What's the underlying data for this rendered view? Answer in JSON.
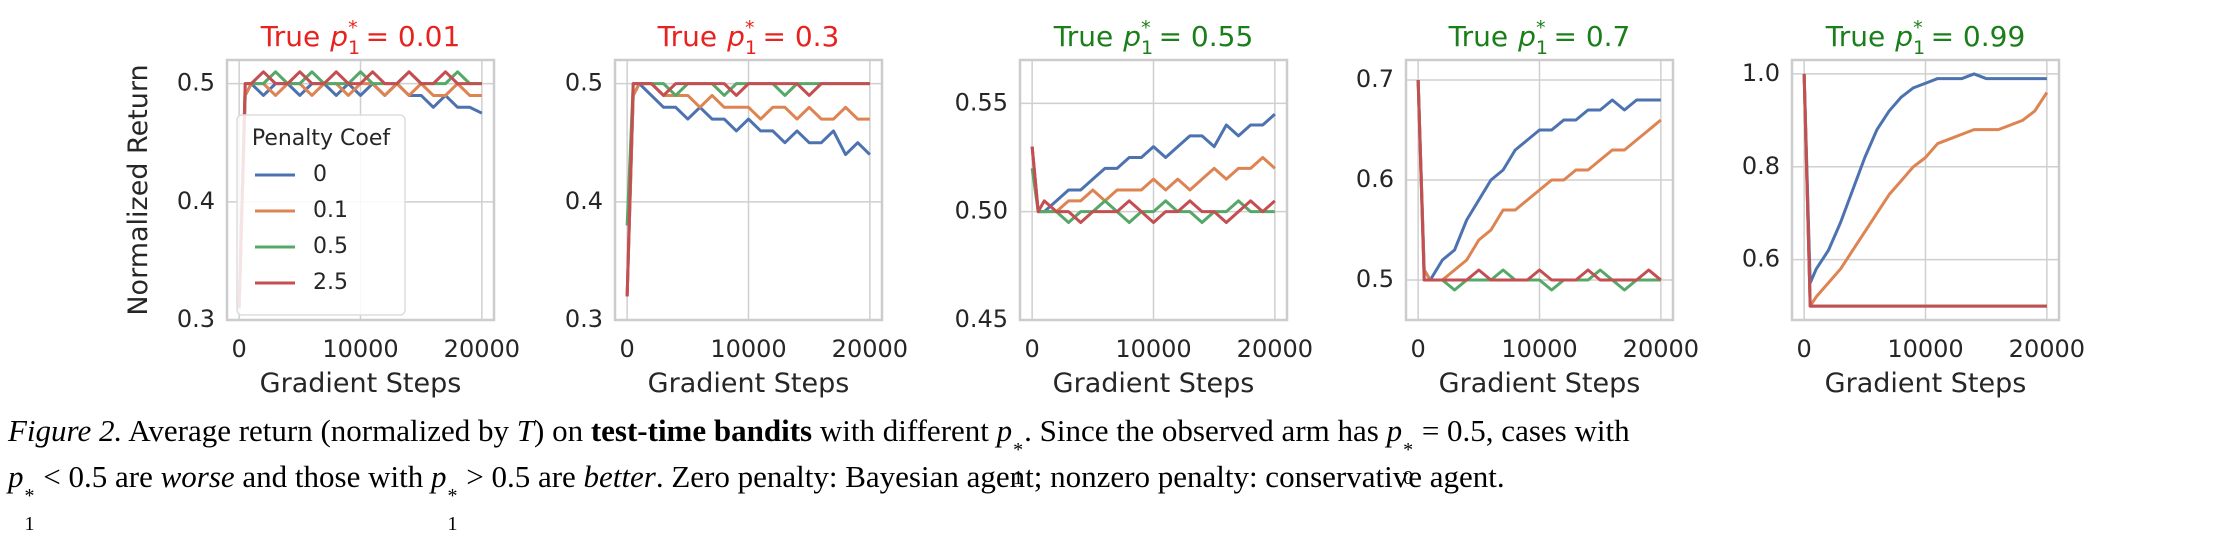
{
  "chart_data": [
    {
      "type": "line",
      "title": {
        "prefix": "True",
        "symbol": "p",
        "sub": "1",
        "sup": "*",
        "rest": "= 0.01"
      },
      "title_color": "#e8231f",
      "ylabel": "Normalized Return",
      "xlabel": "Gradient Steps",
      "grid": true,
      "legend": "center left",
      "legend_title": "Penalty Coef",
      "xlim": [
        -1000,
        21000
      ],
      "xticks": [
        0,
        10000,
        20000
      ],
      "ylim": [
        0.3,
        0.52
      ],
      "yticks": [
        0.3,
        0.4,
        0.5
      ],
      "x": [
        0,
        500,
        1000,
        2000,
        3000,
        4000,
        5000,
        6000,
        7000,
        8000,
        9000,
        10000,
        11000,
        12000,
        13000,
        14000,
        15000,
        16000,
        17000,
        18000,
        19000,
        20000
      ],
      "series": [
        {
          "name": "0",
          "color": "#4c72b0",
          "values": [
            0.31,
            0.49,
            0.5,
            0.49,
            0.5,
            0.5,
            0.49,
            0.5,
            0.5,
            0.49,
            0.5,
            0.49,
            0.5,
            0.49,
            0.5,
            0.49,
            0.49,
            0.48,
            0.49,
            0.48,
            0.48,
            0.475
          ]
        },
        {
          "name": "0.1",
          "color": "#dd8452",
          "values": [
            0.31,
            0.49,
            0.5,
            0.5,
            0.49,
            0.5,
            0.5,
            0.49,
            0.5,
            0.5,
            0.49,
            0.5,
            0.5,
            0.49,
            0.5,
            0.49,
            0.5,
            0.49,
            0.49,
            0.5,
            0.49,
            0.49
          ]
        },
        {
          "name": "0.5",
          "color": "#55a868",
          "values": [
            0.31,
            0.5,
            0.5,
            0.5,
            0.51,
            0.5,
            0.5,
            0.51,
            0.5,
            0.5,
            0.5,
            0.51,
            0.5,
            0.5,
            0.5,
            0.51,
            0.5,
            0.5,
            0.5,
            0.51,
            0.5,
            0.5
          ]
        },
        {
          "name": "2.5",
          "color": "#c44e52",
          "values": [
            0.31,
            0.5,
            0.5,
            0.51,
            0.5,
            0.5,
            0.51,
            0.5,
            0.5,
            0.51,
            0.5,
            0.5,
            0.51,
            0.5,
            0.5,
            0.51,
            0.5,
            0.5,
            0.51,
            0.5,
            0.5,
            0.5
          ]
        }
      ]
    },
    {
      "type": "line",
      "title": {
        "prefix": "True",
        "symbol": "p",
        "sub": "1",
        "sup": "*",
        "rest": "= 0.3"
      },
      "title_color": "#e8231f",
      "xlabel": "Gradient Steps",
      "grid": true,
      "xlim": [
        -1000,
        21000
      ],
      "xticks": [
        0,
        10000,
        20000
      ],
      "ylim": [
        0.3,
        0.52
      ],
      "yticks": [
        0.3,
        0.4,
        0.5
      ],
      "x": [
        0,
        500,
        1000,
        2000,
        3000,
        4000,
        5000,
        6000,
        7000,
        8000,
        9000,
        10000,
        11000,
        12000,
        13000,
        14000,
        15000,
        16000,
        17000,
        18000,
        19000,
        20000
      ],
      "series": [
        {
          "color": "#4c72b0",
          "values": [
            0.32,
            0.49,
            0.5,
            0.49,
            0.48,
            0.48,
            0.47,
            0.48,
            0.47,
            0.47,
            0.46,
            0.47,
            0.46,
            0.46,
            0.45,
            0.46,
            0.45,
            0.45,
            0.46,
            0.44,
            0.45,
            0.44
          ]
        },
        {
          "color": "#dd8452",
          "values": [
            0.32,
            0.49,
            0.5,
            0.5,
            0.49,
            0.49,
            0.49,
            0.48,
            0.49,
            0.48,
            0.48,
            0.48,
            0.47,
            0.48,
            0.48,
            0.47,
            0.48,
            0.47,
            0.47,
            0.48,
            0.47,
            0.47
          ]
        },
        {
          "color": "#55a868",
          "values": [
            0.38,
            0.5,
            0.5,
            0.5,
            0.5,
            0.49,
            0.5,
            0.5,
            0.5,
            0.49,
            0.5,
            0.5,
            0.5,
            0.5,
            0.49,
            0.5,
            0.5,
            0.5,
            0.5,
            0.5,
            0.5,
            0.5
          ]
        },
        {
          "color": "#c44e52",
          "values": [
            0.32,
            0.5,
            0.5,
            0.5,
            0.49,
            0.5,
            0.5,
            0.5,
            0.5,
            0.5,
            0.49,
            0.5,
            0.5,
            0.5,
            0.5,
            0.5,
            0.49,
            0.5,
            0.5,
            0.5,
            0.5,
            0.5
          ]
        }
      ]
    },
    {
      "type": "line",
      "title": {
        "prefix": "True",
        "symbol": "p",
        "sub": "1",
        "sup": "*",
        "rest": "= 0.55"
      },
      "title_color": "#1a7f1a",
      "xlabel": "Gradient Steps",
      "grid": true,
      "xlim": [
        -1000,
        21000
      ],
      "xticks": [
        0,
        10000,
        20000
      ],
      "ylim": [
        0.45,
        0.57
      ],
      "yticks": [
        0.45,
        {
          "value": 0.5,
          "label": "0.50"
        },
        0.55
      ],
      "x": [
        0,
        500,
        1000,
        2000,
        3000,
        4000,
        5000,
        6000,
        7000,
        8000,
        9000,
        10000,
        11000,
        12000,
        13000,
        14000,
        15000,
        16000,
        17000,
        18000,
        19000,
        20000
      ],
      "series": [
        {
          "color": "#4c72b0",
          "values": [
            0.53,
            0.5,
            0.5,
            0.505,
            0.51,
            0.51,
            0.515,
            0.52,
            0.52,
            0.525,
            0.525,
            0.53,
            0.525,
            0.53,
            0.535,
            0.535,
            0.53,
            0.54,
            0.535,
            0.54,
            0.54,
            0.545
          ]
        },
        {
          "color": "#dd8452",
          "values": [
            0.53,
            0.5,
            0.5,
            0.5,
            0.505,
            0.505,
            0.51,
            0.505,
            0.51,
            0.51,
            0.51,
            0.515,
            0.51,
            0.515,
            0.51,
            0.515,
            0.52,
            0.515,
            0.52,
            0.52,
            0.525,
            0.52
          ]
        },
        {
          "color": "#55a868",
          "values": [
            0.52,
            0.5,
            0.5,
            0.5,
            0.495,
            0.5,
            0.5,
            0.505,
            0.5,
            0.495,
            0.5,
            0.5,
            0.505,
            0.5,
            0.5,
            0.495,
            0.5,
            0.5,
            0.505,
            0.5,
            0.5,
            0.5
          ]
        },
        {
          "color": "#c44e52",
          "values": [
            0.53,
            0.5,
            0.505,
            0.5,
            0.5,
            0.495,
            0.5,
            0.5,
            0.5,
            0.505,
            0.5,
            0.495,
            0.5,
            0.5,
            0.505,
            0.5,
            0.5,
            0.495,
            0.5,
            0.505,
            0.5,
            0.505
          ]
        }
      ]
    },
    {
      "type": "line",
      "title": {
        "prefix": "True",
        "symbol": "p",
        "sub": "1",
        "sup": "*",
        "rest": "= 0.7"
      },
      "title_color": "#1a7f1a",
      "xlabel": "Gradient Steps",
      "grid": true,
      "xlim": [
        -1000,
        21000
      ],
      "xticks": [
        0,
        10000,
        20000
      ],
      "ylim": [
        0.46,
        0.72
      ],
      "yticks": [
        0.5,
        0.6,
        0.7
      ],
      "x": [
        0,
        500,
        1000,
        2000,
        3000,
        4000,
        5000,
        6000,
        7000,
        8000,
        9000,
        10000,
        11000,
        12000,
        13000,
        14000,
        15000,
        16000,
        17000,
        18000,
        19000,
        20000
      ],
      "series": [
        {
          "color": "#4c72b0",
          "values": [
            0.7,
            0.51,
            0.5,
            0.52,
            0.53,
            0.56,
            0.58,
            0.6,
            0.61,
            0.63,
            0.64,
            0.65,
            0.65,
            0.66,
            0.66,
            0.67,
            0.67,
            0.68,
            0.67,
            0.68,
            0.68,
            0.68
          ]
        },
        {
          "color": "#dd8452",
          "values": [
            0.7,
            0.51,
            0.5,
            0.5,
            0.51,
            0.52,
            0.54,
            0.55,
            0.57,
            0.57,
            0.58,
            0.59,
            0.6,
            0.6,
            0.61,
            0.61,
            0.62,
            0.63,
            0.63,
            0.64,
            0.65,
            0.66
          ]
        },
        {
          "color": "#55a868",
          "values": [
            0.7,
            0.5,
            0.5,
            0.5,
            0.49,
            0.5,
            0.5,
            0.5,
            0.51,
            0.5,
            0.5,
            0.5,
            0.49,
            0.5,
            0.5,
            0.5,
            0.51,
            0.5,
            0.49,
            0.5,
            0.5,
            0.5
          ]
        },
        {
          "color": "#c44e52",
          "values": [
            0.7,
            0.5,
            0.5,
            0.5,
            0.5,
            0.5,
            0.51,
            0.5,
            0.5,
            0.5,
            0.5,
            0.51,
            0.5,
            0.5,
            0.5,
            0.51,
            0.5,
            0.5,
            0.5,
            0.5,
            0.51,
            0.5
          ]
        }
      ]
    },
    {
      "type": "line",
      "title": {
        "prefix": "True",
        "symbol": "p",
        "sub": "1",
        "sup": "*",
        "rest": "= 0.99"
      },
      "title_color": "#1a7f1a",
      "xlabel": "Gradient Steps",
      "grid": true,
      "xlim": [
        -1000,
        21000
      ],
      "xticks": [
        0,
        10000,
        20000
      ],
      "ylim": [
        0.47,
        1.03
      ],
      "yticks": [
        0.6,
        0.8,
        {
          "value": 1,
          "label": "1.0"
        }
      ],
      "x": [
        0,
        500,
        1000,
        2000,
        3000,
        4000,
        5000,
        6000,
        7000,
        8000,
        9000,
        10000,
        11000,
        12000,
        13000,
        14000,
        15000,
        16000,
        17000,
        18000,
        19000,
        20000
      ],
      "series": [
        {
          "color": "#4c72b0",
          "values": [
            1.0,
            0.55,
            0.58,
            0.62,
            0.68,
            0.75,
            0.82,
            0.88,
            0.92,
            0.95,
            0.97,
            0.98,
            0.99,
            0.99,
            0.99,
            1.0,
            0.99,
            0.99,
            0.99,
            0.99,
            0.99,
            0.99
          ]
        },
        {
          "color": "#dd8452",
          "values": [
            1.0,
            0.5,
            0.52,
            0.55,
            0.58,
            0.62,
            0.66,
            0.7,
            0.74,
            0.77,
            0.8,
            0.82,
            0.85,
            0.86,
            0.87,
            0.88,
            0.88,
            0.88,
            0.89,
            0.9,
            0.92,
            0.96
          ]
        },
        {
          "color": "#55a868",
          "values": [
            1.0,
            0.5,
            0.5,
            0.5,
            0.5,
            0.5,
            0.5,
            0.5,
            0.5,
            0.5,
            0.5,
            0.5,
            0.5,
            0.5,
            0.5,
            0.5,
            0.5,
            0.5,
            0.5,
            0.5,
            0.5,
            0.5
          ]
        },
        {
          "color": "#c44e52",
          "values": [
            1.0,
            0.5,
            0.5,
            0.5,
            0.5,
            0.5,
            0.5,
            0.5,
            0.5,
            0.5,
            0.5,
            0.5,
            0.5,
            0.5,
            0.5,
            0.5,
            0.5,
            0.5,
            0.5,
            0.5,
            0.5,
            0.5
          ]
        }
      ]
    }
  ],
  "caption": [
    "Figure 2.",
    "Average return (normalized by",
    "T",
    ") on",
    "test-time bandits",
    "with different",
    "p",
    "1",
    "*",
    ". Since the observed arm has",
    "p",
    "0",
    "*",
    "= 0.5, cases with",
    "p",
    "1",
    "*",
    "< 0.5 are",
    "worse",
    "and those with",
    "p",
    "1",
    "*",
    "> 0.5 are",
    "better",
    ". Zero penalty: Bayesian agent; nonzero penalty: conservative agent."
  ]
}
